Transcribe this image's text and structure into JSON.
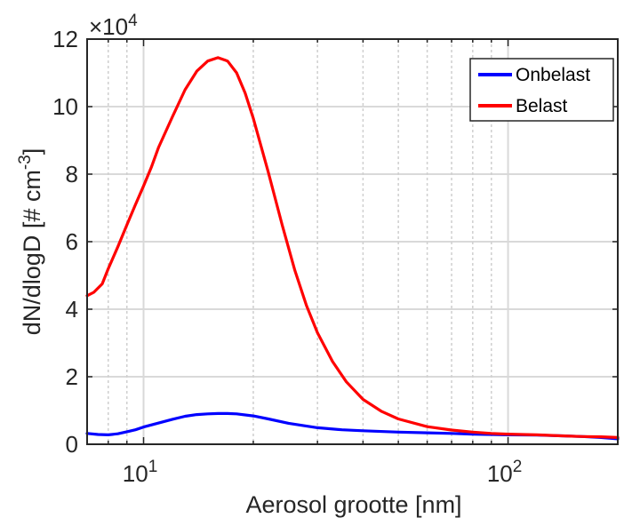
{
  "chart_data": {
    "type": "line",
    "xscale": "log",
    "xlim": [
      7,
      200
    ],
    "ylim": [
      0,
      120000
    ],
    "y_multiplier_label": "×10",
    "y_multiplier_exp": "4",
    "xlabel": "Aerosol grootte [nm]",
    "ylabel_main": "dN/dlogD [# cm",
    "ylabel_sup": "-3",
    "ylabel_close": "]",
    "x_ticks": [
      {
        "value": 10,
        "base": "10",
        "exp": "1"
      },
      {
        "value": 100,
        "base": "10",
        "exp": "2"
      }
    ],
    "y_ticks": [
      {
        "value": 0,
        "label": "0"
      },
      {
        "value": 20000,
        "label": "2"
      },
      {
        "value": 40000,
        "label": "4"
      },
      {
        "value": 60000,
        "label": "6"
      },
      {
        "value": 80000,
        "label": "8"
      },
      {
        "value": 100000,
        "label": "10"
      },
      {
        "value": 120000,
        "label": "12"
      }
    ],
    "grid": true,
    "minor_grid": true,
    "legend_position": "top-right",
    "series": [
      {
        "name": "Onbelast",
        "color": "#0000ff",
        "x": [
          7,
          7.5,
          8,
          8.5,
          9,
          9.5,
          10,
          11,
          12,
          13,
          14,
          15,
          16,
          17,
          18,
          20,
          22,
          25,
          30,
          35,
          40,
          50,
          60,
          70,
          80,
          90,
          100,
          120,
          140,
          160,
          180,
          200
        ],
        "y": [
          3200,
          2900,
          2800,
          3100,
          3700,
          4300,
          5100,
          6300,
          7400,
          8300,
          8800,
          9000,
          9100,
          9100,
          9000,
          8400,
          7500,
          6200,
          4900,
          4300,
          4000,
          3600,
          3400,
          3200,
          3000,
          2900,
          2800,
          2700,
          2500,
          2300,
          2000,
          1600
        ]
      },
      {
        "name": "Belast",
        "color": "#ff0000",
        "x": [
          7,
          7.3,
          7.7,
          8,
          8.5,
          9,
          9.5,
          10,
          10.5,
          11,
          12,
          13,
          14,
          15,
          16,
          17,
          18,
          19,
          20,
          22,
          24,
          26,
          28,
          30,
          33,
          36,
          40,
          45,
          50,
          60,
          70,
          80,
          90,
          100,
          120,
          140,
          160,
          180,
          200
        ],
        "y": [
          44000,
          45000,
          47500,
          52000,
          58500,
          65000,
          71000,
          76500,
          82000,
          88000,
          97000,
          105000,
          110500,
          113500,
          114500,
          113500,
          110000,
          104000,
          96500,
          80500,
          65000,
          51500,
          41000,
          33000,
          24500,
          18500,
          13300,
          9700,
          7500,
          5200,
          4200,
          3600,
          3200,
          3000,
          2800,
          2500,
          2300,
          2200,
          2000
        ]
      }
    ]
  }
}
